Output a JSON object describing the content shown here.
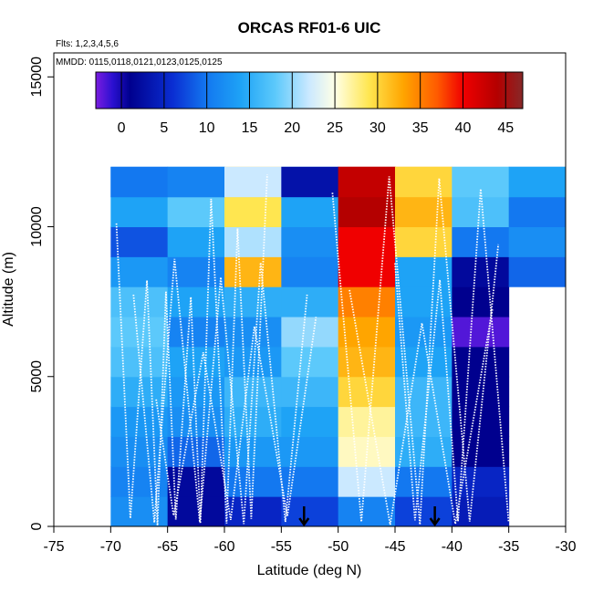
{
  "chart_data": {
    "type": "heatmap",
    "title": "ORCAS RF01-6 UIC",
    "flights_note": "Flts: 1,2,3,4,5,6",
    "dates_note": "MMDD: 0115,0118,0121,0123,0125,0125",
    "xlabel": "Latitude (deg N)",
    "ylabel": "Altitude (m)",
    "xlim": [
      -75,
      -30
    ],
    "ylim": [
      0,
      15800
    ],
    "x_ticks": [
      -75,
      -70,
      -65,
      -60,
      -55,
      -50,
      -45,
      -40,
      -35,
      -30
    ],
    "x_tick_labels": [
      "-75",
      "-70",
      "-65",
      "-60",
      "-55",
      "-50",
      "-45",
      "-40",
      "-35",
      "-30"
    ],
    "y_ticks": [
      0,
      5000,
      10000,
      15000
    ],
    "y_tick_labels": [
      "0",
      "5000",
      "10000",
      "15000"
    ],
    "colorbar": {
      "range": [
        -3,
        47
      ],
      "ticks": [
        0,
        5,
        10,
        15,
        20,
        25,
        30,
        35,
        40,
        45
      ],
      "tick_labels": [
        "0",
        "5",
        "10",
        "15",
        "20",
        "25",
        "30",
        "35",
        "40",
        "45"
      ],
      "stops": [
        {
          "v": -3,
          "color": "#7a1de0"
        },
        {
          "v": -1,
          "color": "#2a10d0"
        },
        {
          "v": 1,
          "color": "#00008e"
        },
        {
          "v": 6,
          "color": "#0a2ed2"
        },
        {
          "v": 10,
          "color": "#1378f0"
        },
        {
          "v": 14,
          "color": "#1ea3f6"
        },
        {
          "v": 18,
          "color": "#5cc9fb"
        },
        {
          "v": 22,
          "color": "#cbe9ff"
        },
        {
          "v": 25,
          "color": "#ffffe6"
        },
        {
          "v": 29,
          "color": "#ffe650"
        },
        {
          "v": 33,
          "color": "#ffa500"
        },
        {
          "v": 37,
          "color": "#ff5a00"
        },
        {
          "v": 40,
          "color": "#f00000"
        },
        {
          "v": 44,
          "color": "#b40000"
        },
        {
          "v": 47,
          "color": "#872828"
        }
      ]
    },
    "bins": {
      "lat_edges": [
        -70,
        -65,
        -60,
        -55,
        -50,
        -45,
        -40,
        -35,
        -30
      ],
      "alt_edges": [
        0,
        1000,
        2000,
        3000,
        4000,
        5000,
        6000,
        7000,
        8000,
        9000,
        10000,
        11000,
        12000
      ]
    },
    "cells": [
      [
        12,
        2,
        5,
        7,
        11,
        7,
        4,
        null
      ],
      [
        11,
        2,
        10,
        10,
        22,
        10,
        5,
        null
      ],
      [
        12,
        9,
        13,
        13,
        26,
        15,
        1,
        null
      ],
      [
        13,
        12,
        15,
        14,
        27,
        16,
        1,
        null
      ],
      [
        15,
        13,
        16,
        16,
        30,
        16,
        1,
        null
      ],
      [
        17,
        14,
        13,
        18,
        32,
        14,
        1,
        null
      ],
      [
        18,
        11,
        12,
        20,
        33,
        13,
        -2,
        null
      ],
      [
        17,
        14,
        15,
        15,
        35,
        14,
        1,
        null
      ],
      [
        13,
        11,
        32,
        11,
        40,
        14,
        2,
        9
      ],
      [
        8,
        14,
        21,
        12,
        40,
        30,
        10,
        12
      ],
      [
        14,
        18,
        29,
        14,
        44,
        32,
        17,
        10
      ],
      [
        12,
        12,
        30,
        13,
        44,
        32,
        18,
        12
      ],
      [
        10,
        11,
        22,
        3,
        43,
        30,
        18,
        14
      ]
    ],
    "cells_comment": "rows from 0 m upward; row 12 is the top bin 11000-12000 m duplicated for display",
    "arrows_at_lat": [
      -53,
      -41.5
    ]
  }
}
